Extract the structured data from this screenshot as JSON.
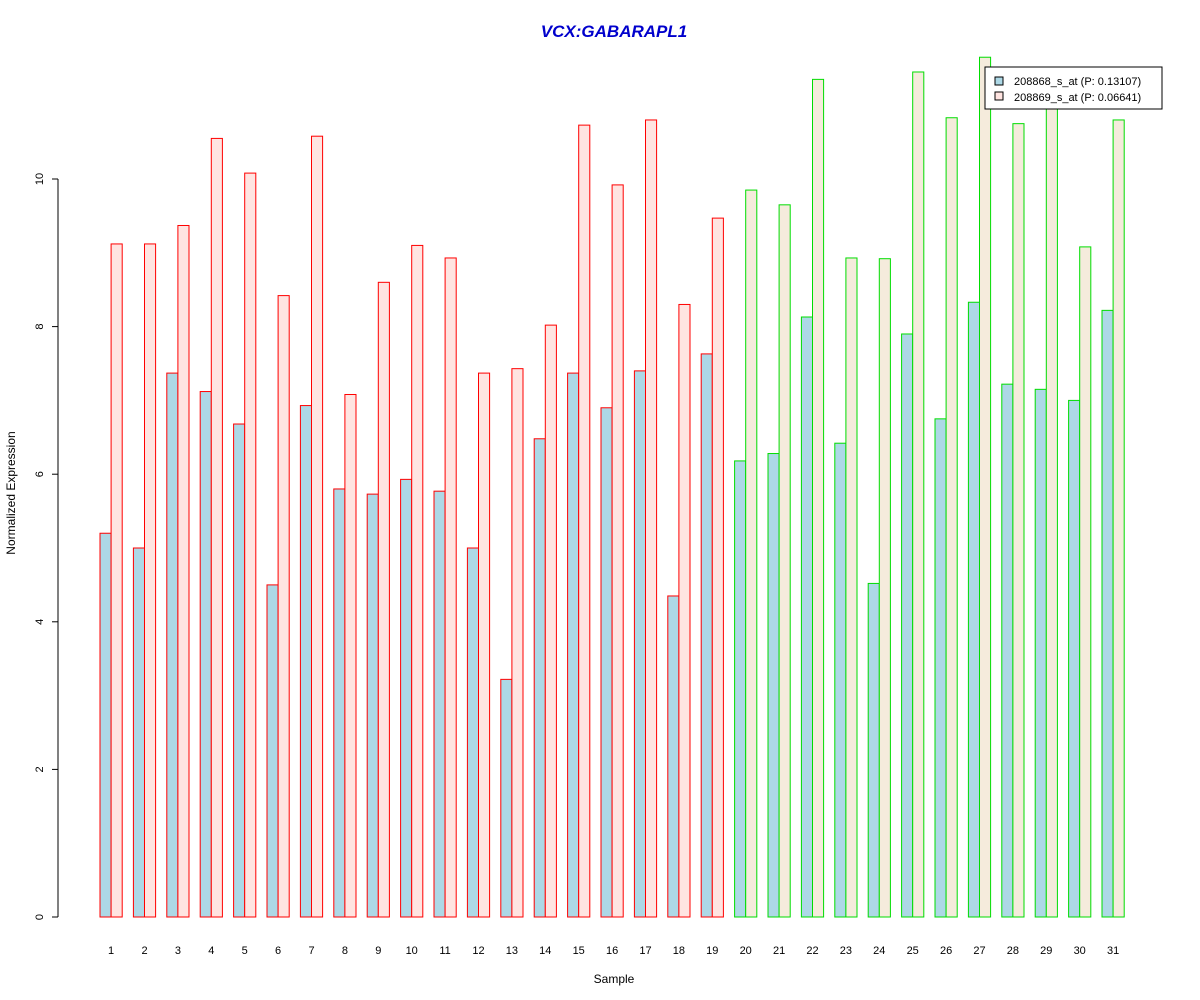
{
  "chart_data": {
    "type": "bar",
    "title": "VCX:GABARAPL1",
    "xlabel": "Sample",
    "ylabel": "Normalized Expression",
    "ylim": [
      0,
      11.8
    ],
    "yticks": [
      0,
      2,
      4,
      6,
      8,
      10
    ],
    "grid": false,
    "legend_position": "top-right",
    "categories": [
      "1",
      "2",
      "3",
      "4",
      "5",
      "6",
      "7",
      "8",
      "9",
      "10",
      "11",
      "12",
      "13",
      "14",
      "15",
      "16",
      "17",
      "18",
      "19",
      "20",
      "21",
      "22",
      "23",
      "24",
      "25",
      "26",
      "27",
      "28",
      "29",
      "30",
      "31"
    ],
    "groups": [
      {
        "samples": "1-19",
        "border_color": "#ff0000"
      },
      {
        "samples": "20-31",
        "border_color": "#00dd00"
      }
    ],
    "series": [
      {
        "name": "208868_s_at (P: 0.13107)",
        "fill_color": "#add8e6",
        "values": [
          5.2,
          5.0,
          7.37,
          7.12,
          6.68,
          4.5,
          6.93,
          5.8,
          5.73,
          5.93,
          5.77,
          5.0,
          3.22,
          6.48,
          7.37,
          6.9,
          7.4,
          4.35,
          7.63,
          6.18,
          6.28,
          8.13,
          6.42,
          4.52,
          7.9,
          6.75,
          8.33,
          7.22,
          7.15,
          7.0,
          8.22
        ]
      },
      {
        "name": "208869_s_at (P: 0.06641)",
        "fill_color": "#ffe4e1",
        "values": [
          9.12,
          9.12,
          9.37,
          10.55,
          10.08,
          8.42,
          10.58,
          7.08,
          8.6,
          9.1,
          8.93,
          7.37,
          7.43,
          8.02,
          10.73,
          9.92,
          10.8,
          8.3,
          9.47,
          9.85,
          9.65,
          11.35,
          8.93,
          8.92,
          11.45,
          10.83,
          11.65,
          10.75,
          11.0,
          9.08,
          10.8
        ]
      }
    ]
  },
  "colors": {
    "title": "#0000cc",
    "axis": "#000000",
    "group1_border": "#ff0000",
    "group2_border": "#00dd00",
    "series1_fill": "#add8e6",
    "series2_fill_group1": "#ffe4e1",
    "series2_fill_group2": "#f5ebdc"
  }
}
